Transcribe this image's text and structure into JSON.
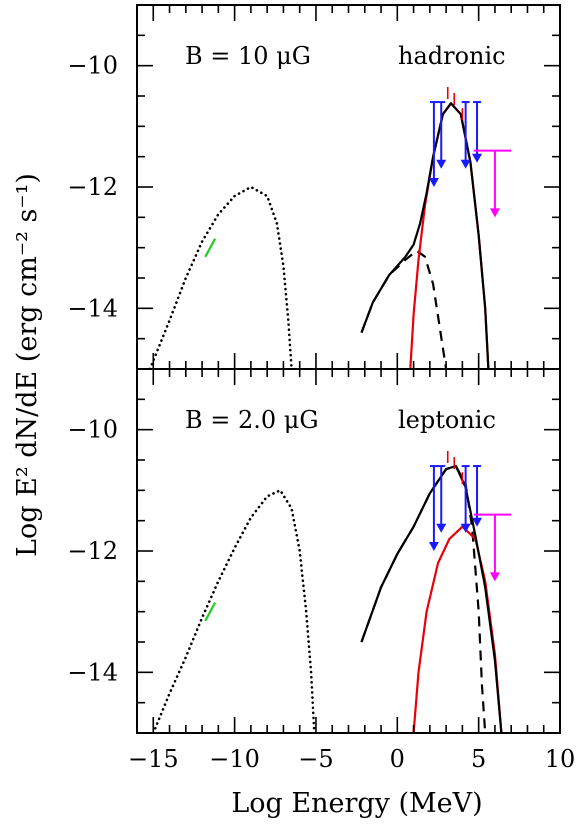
{
  "chart_data": {
    "type": "line",
    "xlabel": "Log Energy (MeV)",
    "ylabel": "Log E² dN/dE (erg cm⁻² s⁻¹)",
    "xlim": [
      -16,
      10
    ],
    "x_ticks": [
      "-15",
      "-10",
      "-5",
      "0",
      "5",
      "10"
    ],
    "y_ticks": [
      "-10",
      "-12",
      "-14"
    ],
    "panels": [
      {
        "id": "top",
        "field_label": "B = 10 μG",
        "model_label": "hadronic",
        "ylim": [
          -15,
          -9
        ],
        "series": [
          {
            "style": "dotted",
            "color": "#000000",
            "points": [
              [
                -15.2,
                -15.0
              ],
              [
                -14,
                -14.2
              ],
              [
                -13,
                -13.5
              ],
              [
                -12,
                -12.9
              ],
              [
                -11,
                -12.45
              ],
              [
                -10,
                -12.15
              ],
              [
                -9,
                -12.0
              ],
              [
                -8,
                -12.15
              ],
              [
                -7.4,
                -12.6
              ],
              [
                -7,
                -13.3
              ],
              [
                -6.7,
                -14.2
              ],
              [
                -6.5,
                -15.0
              ]
            ]
          },
          {
            "style": "dashed",
            "color": "#000000",
            "points": [
              [
                -2.2,
                -14.4
              ],
              [
                -1.5,
                -13.9
              ],
              [
                -0.5,
                -13.45
              ],
              [
                0.5,
                -13.2
              ],
              [
                1.2,
                -13.05
              ],
              [
                1.7,
                -13.15
              ],
              [
                2.2,
                -13.6
              ],
              [
                2.6,
                -14.3
              ],
              [
                3.0,
                -15.0
              ]
            ]
          },
          {
            "style": "solid",
            "color": "#e8000b",
            "points": [
              [
                0.8,
                -15.0
              ],
              [
                1.0,
                -14.1
              ],
              [
                1.3,
                -13.2
              ],
              [
                1.7,
                -12.3
              ],
              [
                2.2,
                -11.5
              ],
              [
                2.8,
                -10.8
              ],
              [
                3.3,
                -10.62
              ],
              [
                3.9,
                -10.8
              ],
              [
                4.5,
                -11.6
              ],
              [
                5.0,
                -12.8
              ],
              [
                5.4,
                -14.0
              ],
              [
                5.6,
                -15.0
              ]
            ]
          },
          {
            "style": "solid",
            "color": "#000000",
            "points": [
              [
                -2.2,
                -14.4
              ],
              [
                -1.5,
                -13.9
              ],
              [
                -0.5,
                -13.45
              ],
              [
                0.5,
                -13.15
              ],
              [
                1.0,
                -12.95
              ],
              [
                1.4,
                -12.6
              ],
              [
                1.8,
                -12.1
              ],
              [
                2.2,
                -11.5
              ],
              [
                2.8,
                -10.8
              ],
              [
                3.3,
                -10.62
              ],
              [
                3.9,
                -10.8
              ],
              [
                4.5,
                -11.6
              ],
              [
                5.0,
                -12.8
              ],
              [
                5.4,
                -14.0
              ],
              [
                5.6,
                -15.0
              ]
            ]
          },
          {
            "style": "solid",
            "color": "#22cc22",
            "points": [
              [
                -11.8,
                -13.15
              ],
              [
                -11.2,
                -12.85
              ]
            ]
          }
        ],
        "blue_upper_limits": [
          [
            2.25,
            -10.6,
            -12.0
          ],
          [
            2.7,
            -10.6,
            -11.7
          ],
          [
            4.2,
            -10.6,
            -11.7
          ],
          [
            4.9,
            -10.6,
            -11.6
          ]
        ],
        "red_points": [
          [
            2.7,
            -10.75
          ],
          [
            3.1,
            -10.45
          ],
          [
            3.5,
            -10.55
          ],
          [
            4.0,
            -10.8
          ]
        ],
        "magenta_limit": {
          "x_range": [
            4.7,
            7.0
          ],
          "y": -11.4,
          "arrow_x": 6.0,
          "arrow_to": -12.5
        }
      },
      {
        "id": "bottom",
        "field_label": "B = 2.0 μG",
        "model_label": "leptonic",
        "ylim": [
          -15,
          -9
        ],
        "series": [
          {
            "style": "dotted",
            "color": "#000000",
            "points": [
              [
                -15.0,
                -15.0
              ],
              [
                -14,
                -14.35
              ],
              [
                -13,
                -13.75
              ],
              [
                -12,
                -13.1
              ],
              [
                -11,
                -12.5
              ],
              [
                -10,
                -11.95
              ],
              [
                -9,
                -11.45
              ],
              [
                -8,
                -11.1
              ],
              [
                -7.2,
                -11.0
              ],
              [
                -6.5,
                -11.3
              ],
              [
                -6,
                -12.0
              ],
              [
                -5.6,
                -13.0
              ],
              [
                -5.3,
                -14.0
              ],
              [
                -5.1,
                -15.0
              ]
            ]
          },
          {
            "style": "dashed",
            "color": "#000000",
            "points": [
              [
                -2.2,
                -13.5
              ],
              [
                -1,
                -12.6
              ],
              [
                0,
                -12.05
              ],
              [
                1,
                -11.6
              ],
              [
                2,
                -11.05
              ],
              [
                3,
                -10.65
              ],
              [
                3.6,
                -10.6
              ],
              [
                4.2,
                -10.9
              ],
              [
                4.6,
                -11.6
              ],
              [
                5.0,
                -13.0
              ],
              [
                5.2,
                -14.2
              ],
              [
                5.4,
                -15.0
              ]
            ]
          },
          {
            "style": "solid",
            "color": "#e8000b",
            "points": [
              [
                1.0,
                -15.0
              ],
              [
                1.3,
                -14.0
              ],
              [
                1.8,
                -13.0
              ],
              [
                2.5,
                -12.2
              ],
              [
                3.2,
                -11.8
              ],
              [
                4.0,
                -11.6
              ],
              [
                4.8,
                -11.8
              ],
              [
                5.4,
                -12.5
              ],
              [
                6.0,
                -13.7
              ],
              [
                6.4,
                -15.0
              ]
            ]
          },
          {
            "style": "solid",
            "color": "#000000",
            "points": [
              [
                -2.2,
                -13.5
              ],
              [
                -1,
                -12.6
              ],
              [
                0,
                -12.05
              ],
              [
                1,
                -11.6
              ],
              [
                2,
                -11.05
              ],
              [
                3,
                -10.65
              ],
              [
                3.6,
                -10.6
              ],
              [
                4.2,
                -10.95
              ],
              [
                4.8,
                -11.75
              ],
              [
                5.4,
                -12.6
              ],
              [
                6.0,
                -13.8
              ],
              [
                6.4,
                -15.0
              ]
            ]
          },
          {
            "style": "solid",
            "color": "#22cc22",
            "points": [
              [
                -11.8,
                -13.15
              ],
              [
                -11.2,
                -12.85
              ]
            ]
          }
        ],
        "blue_upper_limits": [
          [
            2.25,
            -10.6,
            -12.0
          ],
          [
            2.7,
            -10.6,
            -11.7
          ],
          [
            4.2,
            -10.6,
            -11.7
          ],
          [
            4.9,
            -10.6,
            -11.6
          ]
        ],
        "red_points": [
          [
            2.7,
            -10.75
          ],
          [
            3.1,
            -10.45
          ],
          [
            3.5,
            -10.55
          ],
          [
            4.0,
            -10.8
          ]
        ],
        "magenta_limit": {
          "x_range": [
            4.7,
            7.0
          ],
          "y": -11.4,
          "arrow_x": 6.0,
          "arrow_to": -12.5
        }
      }
    ]
  }
}
